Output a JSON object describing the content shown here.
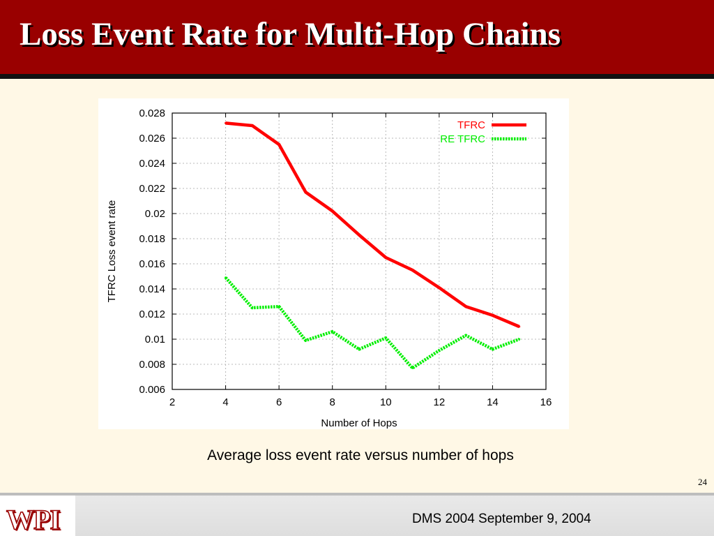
{
  "slide": {
    "title": "Loss Event Rate for Multi-Hop Chains",
    "caption": "Average loss event rate versus number of hops",
    "slide_number": "24",
    "footer_text": "DMS 2004 September 9, 2004",
    "logo_text": "WPI"
  },
  "colors": {
    "title_bar": "#990000",
    "background": "#fff8e6",
    "tfrc": "#ff0000",
    "re_tfrc": "#00ee00"
  },
  "chart_data": {
    "type": "line",
    "title": "",
    "xlabel": "Number of Hops",
    "ylabel": "TFRC Loss event rate",
    "xlim": [
      2,
      16
    ],
    "ylim": [
      0.006,
      0.028
    ],
    "xticks": [
      "2",
      "4",
      "6",
      "8",
      "10",
      "12",
      "14",
      "16"
    ],
    "yticks": [
      "0.006",
      "0.008",
      "0.01",
      "0.012",
      "0.014",
      "0.016",
      "0.018",
      "0.02",
      "0.022",
      "0.024",
      "0.026",
      "0.028"
    ],
    "grid": true,
    "legend_position": "top-right",
    "series": [
      {
        "name": "TFRC",
        "style": "solid",
        "x": [
          4,
          5,
          6,
          7,
          8,
          9,
          10,
          11,
          12,
          13,
          14,
          15
        ],
        "y": [
          0.0272,
          0.027,
          0.0255,
          0.0217,
          0.0202,
          0.0183,
          0.0165,
          0.0155,
          0.0141,
          0.0126,
          0.0119,
          0.011
        ]
      },
      {
        "name": "RE TFRC",
        "style": "dotted",
        "x": [
          4,
          5,
          6,
          7,
          8,
          9,
          10,
          11,
          12,
          13,
          14,
          15
        ],
        "y": [
          0.0149,
          0.0125,
          0.0126,
          0.0099,
          0.0106,
          0.0092,
          0.0101,
          0.0077,
          0.0091,
          0.0103,
          0.0092,
          0.01
        ]
      }
    ]
  }
}
